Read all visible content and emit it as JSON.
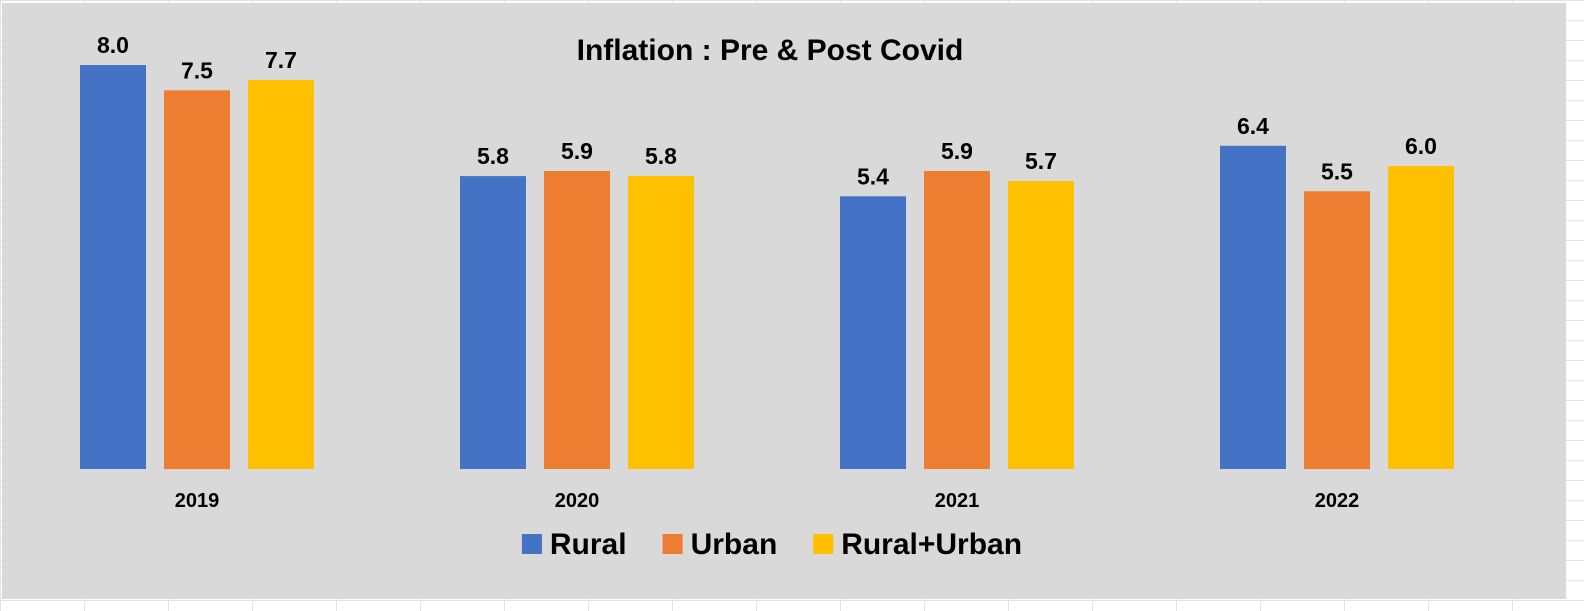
{
  "chart_data": {
    "type": "bar",
    "title": "Inflation : Pre & Post Covid",
    "xlabel": "",
    "ylabel": "",
    "categories": [
      "2019",
      "2020",
      "2021",
      "2022"
    ],
    "series": [
      {
        "name": "Rural",
        "values": [
          8.0,
          5.8,
          5.4,
          6.4
        ],
        "color": "#4472c4"
      },
      {
        "name": "Urban",
        "values": [
          7.5,
          5.9,
          5.9,
          5.5
        ],
        "color": "#ed7d31"
      },
      {
        "name": "Rural+Urban",
        "values": [
          7.7,
          5.8,
          5.7,
          6.0
        ],
        "color": "#ffc000"
      }
    ],
    "ylim": [
      0,
      8.0
    ],
    "value_axis_visible": false,
    "grid": false,
    "legend": "bottom-center",
    "data_labels": true,
    "label_format": "one-decimal"
  }
}
